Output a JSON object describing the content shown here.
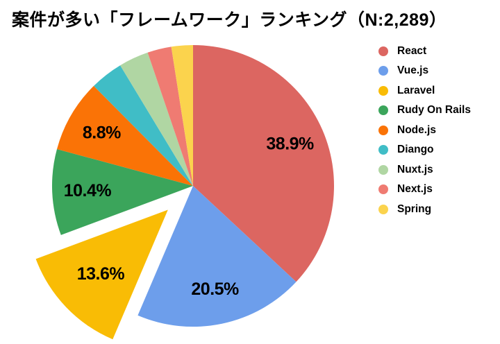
{
  "title": "案件が多い「フレームワーク」ランキング（N:2,289）",
  "chart_data": {
    "type": "pie",
    "title": "案件が多い「フレームワーク」ランキング（N:2,289）",
    "sample_size_label": "N:2,289",
    "legend_position": "right",
    "start_angle": "12-o-clock",
    "direction": "clockwise",
    "slices": [
      {
        "label": "React",
        "value": 38.9,
        "display": "38.9%",
        "color": "#DC6661",
        "exploded": false
      },
      {
        "label": "Vue.js",
        "value": 20.5,
        "display": "20.5%",
        "color": "#6D9EEB",
        "exploded": false
      },
      {
        "label": "Laravel",
        "value": 13.6,
        "display": "13.6%",
        "color": "#F9BC05",
        "exploded": true
      },
      {
        "label": "Rudy On Rails",
        "value": 10.4,
        "display": "10.4%",
        "color": "#3BA55B",
        "exploded": false
      },
      {
        "label": "Node.js",
        "value": 8.8,
        "display": "8.8%",
        "color": "#FA7306",
        "exploded": false
      },
      {
        "label": "Diango",
        "value": 4.0,
        "display": "",
        "color": "#40BDC6",
        "exploded": false
      },
      {
        "label": "Nuxt.js",
        "value": 3.6,
        "display": "",
        "color": "#B0D6A3",
        "exploded": false
      },
      {
        "label": "Next.js",
        "value": 2.9,
        "display": "",
        "color": "#EF7B72",
        "exploded": false
      },
      {
        "label": "Spring",
        "value": 2.6,
        "display": "",
        "color": "#FBD34D",
        "exploded": false
      }
    ]
  }
}
